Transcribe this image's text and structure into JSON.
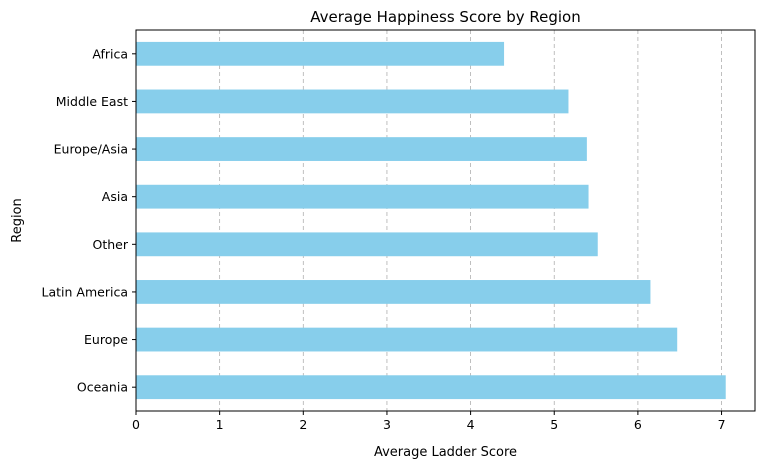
{
  "chart_data": {
    "type": "bar",
    "orientation": "horizontal",
    "title": "Average Happiness Score by Region",
    "xlabel": "Average Ladder Score",
    "ylabel": "Region",
    "categories": [
      "Oceania",
      "Europe",
      "Latin America",
      "Other",
      "Asia",
      "Europe/Asia",
      "Middle East",
      "Africa"
    ],
    "values": [
      7.05,
      6.47,
      6.15,
      5.52,
      5.41,
      5.39,
      5.17,
      4.4
    ],
    "xlim": [
      0,
      7.4
    ],
    "xticks": [
      "0",
      "1",
      "2",
      "3",
      "4",
      "5",
      "6",
      "7"
    ],
    "grid": "x-dashed",
    "bar_color": "#87ceeb"
  }
}
